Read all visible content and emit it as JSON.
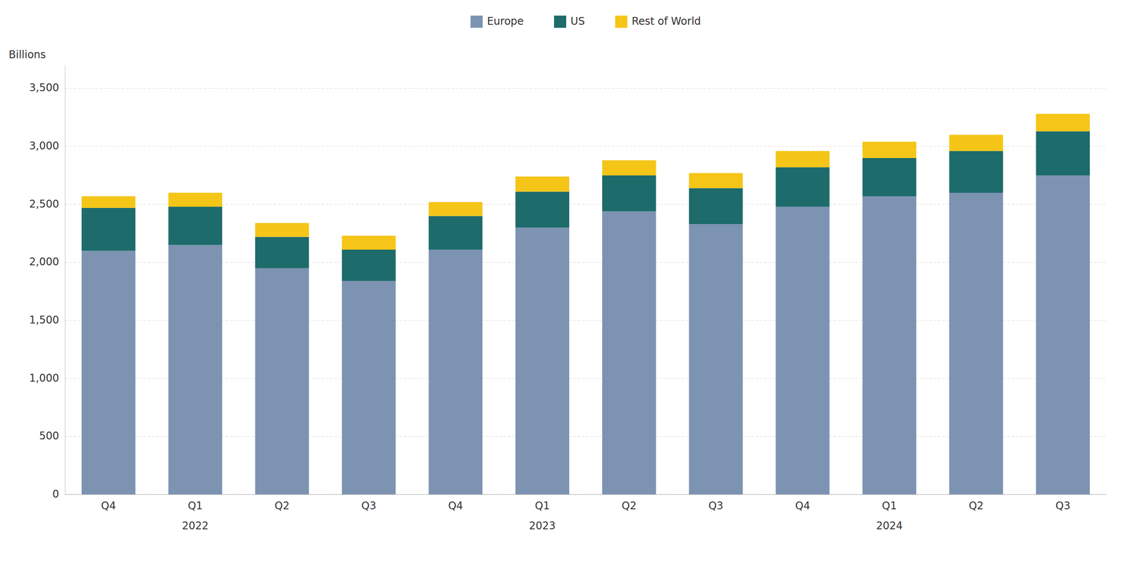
{
  "chart_data": {
    "type": "bar",
    "stacked": true,
    "ylabel": "Billions",
    "categories": [
      "Q4",
      "Q1",
      "Q2",
      "Q3",
      "Q4",
      "Q1",
      "Q2",
      "Q3",
      "Q4",
      "Q1",
      "Q2",
      "Q3"
    ],
    "annotations": [
      {
        "text": "2022",
        "category": 1
      },
      {
        "text": "2023",
        "category": 5
      },
      {
        "text": "2024",
        "category": 9
      }
    ],
    "series": [
      {
        "name": "Europe",
        "color": "#7d93b2",
        "values": [
          2100,
          2150,
          1950,
          1840,
          2110,
          2300,
          2440,
          2330,
          2480,
          2570,
          2600,
          2750
        ]
      },
      {
        "name": "US",
        "color": "#1d6b6b",
        "values": [
          370,
          330,
          270,
          270,
          290,
          310,
          310,
          310,
          340,
          330,
          360,
          380
        ]
      },
      {
        "name": "Rest of World",
        "color": "#f5c518",
        "values": [
          100,
          120,
          120,
          120,
          120,
          130,
          130,
          130,
          140,
          140,
          140,
          150
        ]
      }
    ],
    "ylim": [
      0,
      3700
    ],
    "yticks": [
      0,
      500,
      {
        "value": 1000,
        "label": "1,000"
      },
      {
        "value": 1500,
        "label": "1,500"
      },
      {
        "value": 2000,
        "label": "2,000"
      },
      {
        "value": 2500,
        "label": "2,500"
      },
      {
        "value": 3000,
        "label": "3,000"
      },
      {
        "value": 3500,
        "label": "3,500"
      }
    ],
    "grid": true,
    "legend": "top"
  }
}
